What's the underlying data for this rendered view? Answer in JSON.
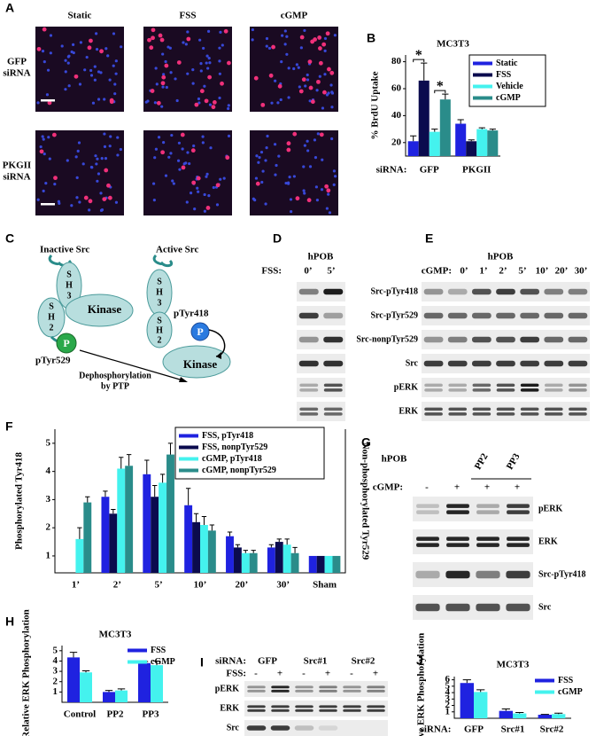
{
  "panel_labels": [
    "A",
    "B",
    "C",
    "D",
    "E",
    "F",
    "G",
    "H",
    "I",
    "J"
  ],
  "panel_a": {
    "columns": [
      "Static",
      "FSS",
      "cGMP"
    ],
    "rows": [
      [
        "GFP",
        "siRNA"
      ],
      [
        "PKGII",
        "siRNA"
      ]
    ]
  },
  "panel_c": {
    "inactive": "Inactive Src",
    "active": "Active Src",
    "sh3": [
      "S",
      "H",
      "3"
    ],
    "sh2": [
      "S",
      "H",
      "2"
    ],
    "kinase": "Kinase",
    "p": "P",
    "ptyr529": "pTyr529",
    "ptyr418": "pTyr418",
    "arrow_label": [
      "Dephosphorylation",
      "by PTP"
    ]
  },
  "panel_d": {
    "cell": "hPOB",
    "treatment": "FSS:",
    "lanes": [
      "0’",
      "5’"
    ]
  },
  "panel_e": {
    "cell": "hPOB",
    "treatment": "cGMP:",
    "lanes": [
      "0’",
      "1’",
      "2’",
      "5’",
      "10’",
      "20’",
      "30’"
    ],
    "rows": [
      "Src-pTyr418",
      "Src-pTyr529",
      "Src-nonpTyr529",
      "Src",
      "pERK",
      "ERK"
    ]
  },
  "panel_g": {
    "cell": "hPOB",
    "treatment": "cGMP:",
    "lanes": [
      "-",
      "+",
      "+",
      "+"
    ],
    "inhibitors": [
      "PP2",
      "PP3"
    ],
    "rows": [
      "pERK",
      "ERK",
      "Src-pTyr418",
      "Src"
    ]
  },
  "panel_i": {
    "sirna_label": "siRNA:",
    "groups": [
      "GFP",
      "Src#1",
      "Src#2"
    ],
    "treatment": "FSS:",
    "lanes": [
      "-",
      "+",
      "-",
      "+",
      "-",
      "+"
    ],
    "rows": [
      "pERK",
      "ERK",
      "Src"
    ]
  },
  "chart_data": [
    {
      "type": "bar",
      "title": "MC3T3",
      "ylabel": "% BrdU Uptake",
      "category_label": "siRNA:",
      "categories": [
        "GFP",
        "PKGII"
      ],
      "series": [
        {
          "name": "Static",
          "color": "#1f22e0",
          "values": [
            21,
            34
          ],
          "errors": [
            4,
            3
          ]
        },
        {
          "name": "FSS",
          "color": "#0b0b4e",
          "values": [
            66,
            21
          ],
          "errors": [
            13,
            1
          ]
        },
        {
          "name": "Vehicle",
          "color": "#44f2ee",
          "values": [
            28,
            30
          ],
          "errors": [
            2,
            1
          ]
        },
        {
          "name": "cGMP",
          "color": "#2a8c8a",
          "values": [
            52,
            29
          ],
          "errors": [
            4,
            1
          ]
        }
      ],
      "annotations": [
        "*",
        "*"
      ],
      "ylim": [
        10,
        85
      ],
      "yticks": [
        20,
        40,
        60,
        80
      ],
      "legend": "upper right"
    },
    {
      "type": "bar",
      "ylabel": "Phosphorylated Tyr418",
      "y2label": "Non-phosphorylated Tyr529",
      "categories": [
        "1’",
        "2’",
        "5’",
        "10’",
        "20’",
        "30’",
        "Sham"
      ],
      "series": [
        {
          "name": "FSS, pTyr418",
          "color": "#1f22e0",
          "values": [
            null,
            3.1,
            3.9,
            2.8,
            1.7,
            1.3,
            1
          ],
          "errors": [
            null,
            0.2,
            0.5,
            0.6,
            0.15,
            0.1,
            0
          ]
        },
        {
          "name": "FSS, nonpTyr529",
          "color": "#0b0b4e",
          "values": [
            null,
            2.5,
            3.1,
            2.2,
            1.3,
            1.5,
            1
          ],
          "errors": [
            null,
            0.15,
            0.4,
            0.3,
            0.1,
            0.1,
            0
          ]
        },
        {
          "name": "cGMP, pTyr418",
          "color": "#44f2ee",
          "values": [
            1.6,
            4.1,
            3.6,
            2.1,
            1.1,
            1.4,
            1
          ],
          "errors": [
            0.4,
            0.4,
            0.3,
            0.3,
            0.1,
            0.2,
            0
          ]
        },
        {
          "name": "cGMP, nonpTyr529",
          "color": "#2a8c8a",
          "values": [
            2.9,
            4.2,
            4.6,
            1.9,
            1.1,
            1.1,
            1
          ],
          "errors": [
            0.2,
            0.4,
            0.4,
            0.2,
            0.1,
            0.2,
            0
          ]
        }
      ],
      "ylim": [
        0.4,
        5.5
      ],
      "yticks": [
        1,
        2,
        3,
        4,
        5
      ],
      "legend": "upper right"
    },
    {
      "type": "bar",
      "title": "MC3T3",
      "ylabel": "Relative ERK Phosphorylation",
      "categories": [
        "Control",
        "PP2",
        "PP3"
      ],
      "series": [
        {
          "name": "FSS",
          "color": "#1f22e0",
          "values": [
            4.35,
            1.0,
            3.8
          ],
          "errors": [
            0.5,
            0.15,
            0.15
          ]
        },
        {
          "name": "cGMP",
          "color": "#44f2ee",
          "values": [
            2.9,
            1.15,
            3.6
          ],
          "errors": [
            0.15,
            0.15,
            0.4
          ]
        }
      ],
      "ylim": [
        0,
        5.5
      ],
      "yticks": [
        1,
        2,
        3,
        4,
        5
      ],
      "legend": "upper right"
    },
    {
      "type": "bar",
      "title": "MC3T3",
      "ylabel": "Relative ERK Phosphorylation",
      "category_label": "siRNA:",
      "categories": [
        "GFP",
        "Src#1",
        "Src#2"
      ],
      "series": [
        {
          "name": "FSS",
          "color": "#1f22e0",
          "values": [
            5.5,
            1.15,
            0.55
          ],
          "errors": [
            0.5,
            0.3,
            0.05
          ]
        },
        {
          "name": "cGMP",
          "color": "#44f2ee",
          "values": [
            4.1,
            0.75,
            0.65
          ],
          "errors": [
            0.35,
            0.15,
            0.15
          ]
        }
      ],
      "ylim": [
        0,
        6.5
      ],
      "yticks": [
        1,
        2,
        3,
        4,
        5,
        6
      ],
      "legend": "upper right"
    }
  ]
}
